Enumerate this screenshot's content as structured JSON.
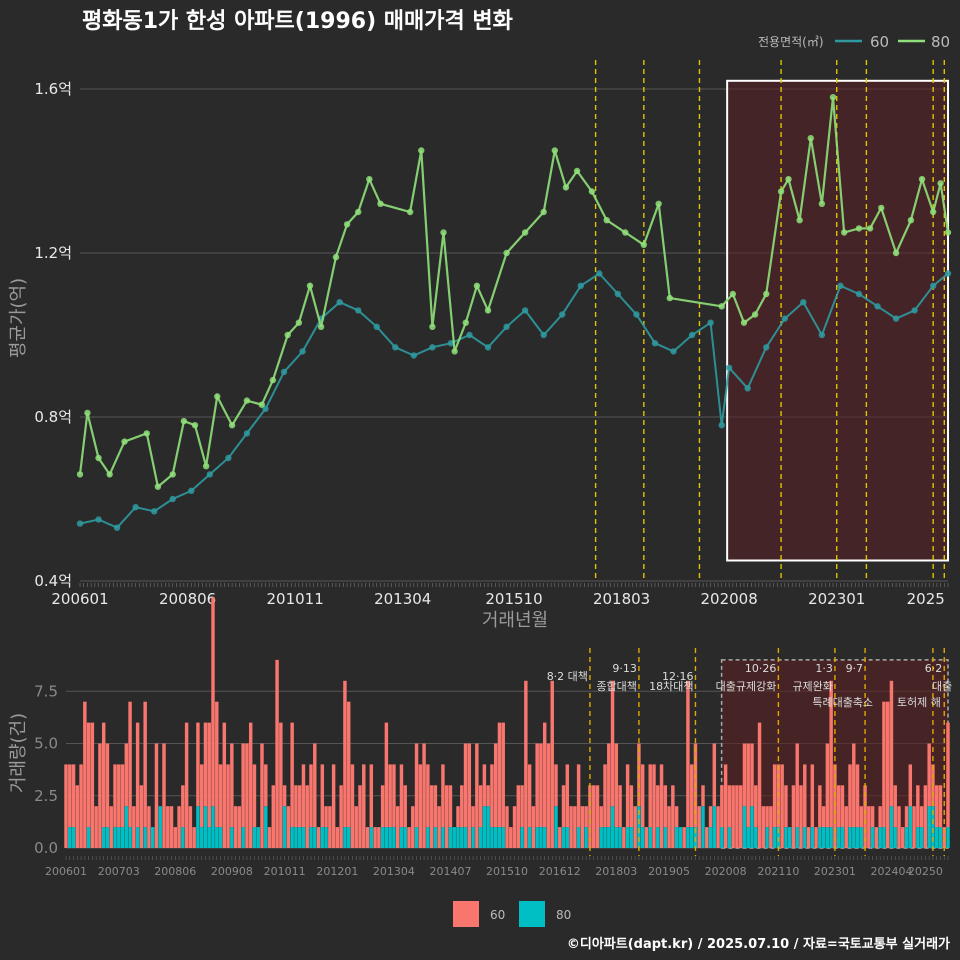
{
  "title": "평화동1가 한성 아파트(1996) 매매가격 변화",
  "legend": {
    "title": "전용면적(㎡)",
    "items": [
      {
        "label": "60",
        "color": "#2e9aa0"
      },
      {
        "label": "80",
        "color": "#8fe07a"
      }
    ]
  },
  "bottom_legend": [
    {
      "label": "60",
      "color": "#f8766d"
    },
    {
      "label": "80",
      "color": "#00bfc4"
    }
  ],
  "footer": "©디아파트(dapt.kr) / 2025.07.10 / 자료=국토교통부 실거래가",
  "policies": [
    {
      "date": "2017-08",
      "l1": "8·2 대책",
      "l2": ""
    },
    {
      "date": "2018-09",
      "l1": "9·13",
      "l2": "종합대책"
    },
    {
      "date": "2019-12",
      "l1": "12·16",
      "l2": "18차대책"
    },
    {
      "date": "2021-10",
      "l1": "10·26",
      "l2": "대출규제강화"
    },
    {
      "date": "2023-01",
      "l1": "1·3",
      "l2": "규제완화"
    },
    {
      "date": "2023-09",
      "l1": "9·7",
      "l2": "특례대출축소"
    },
    {
      "date": "2025-03",
      "l1": "",
      "l2": "토허제 해"
    },
    {
      "date": "2025-06",
      "l1": "6·2",
      "l2": "대출"
    }
  ],
  "chart_data": [
    {
      "type": "line",
      "title": "평화동1가 한성 아파트(1996) 매매가격 변화",
      "xlabel": "거래년월",
      "ylabel": "평균가(억)",
      "ylim": [
        0.4,
        1.65
      ],
      "yticks": [
        "0.4억",
        "0.8억",
        "1.2억",
        "1.6억"
      ],
      "ytick_values": [
        0.4,
        0.8,
        1.2,
        1.6
      ],
      "xticks": [
        "200601",
        "200806",
        "201011",
        "201304",
        "201510",
        "201803",
        "202008",
        "202301",
        "2025"
      ],
      "x_range": [
        "2006-01",
        "2025-07"
      ],
      "highlight_range": [
        "2020-08",
        "2025-07"
      ],
      "series": [
        {
          "name": "60",
          "points": [
            [
              "2006-01",
              0.54
            ],
            [
              "2006-06",
              0.55
            ],
            [
              "2006-11",
              0.53
            ],
            [
              "2007-04",
              0.58
            ],
            [
              "2007-09",
              0.57
            ],
            [
              "2008-02",
              0.6
            ],
            [
              "2008-07",
              0.62
            ],
            [
              "2008-12",
              0.66
            ],
            [
              "2009-05",
              0.7
            ],
            [
              "2009-10",
              0.76
            ],
            [
              "2010-03",
              0.82
            ],
            [
              "2010-08",
              0.91
            ],
            [
              "2011-01",
              0.96
            ],
            [
              "2011-06",
              1.04
            ],
            [
              "2011-11",
              1.08
            ],
            [
              "2012-04",
              1.06
            ],
            [
              "2012-09",
              1.02
            ],
            [
              "2013-02",
              0.97
            ],
            [
              "2013-07",
              0.95
            ],
            [
              "2013-12",
              0.97
            ],
            [
              "2014-05",
              0.98
            ],
            [
              "2014-10",
              1.0
            ],
            [
              "2015-03",
              0.97
            ],
            [
              "2015-08",
              1.02
            ],
            [
              "2016-01",
              1.06
            ],
            [
              "2016-06",
              1.0
            ],
            [
              "2016-11",
              1.05
            ],
            [
              "2017-04",
              1.12
            ],
            [
              "2017-09",
              1.15
            ],
            [
              "2018-02",
              1.1
            ],
            [
              "2018-07",
              1.05
            ],
            [
              "2018-12",
              0.98
            ],
            [
              "2019-05",
              0.96
            ],
            [
              "2019-10",
              1.0
            ],
            [
              "2020-03",
              1.03
            ],
            [
              "2020-06",
              0.78
            ],
            [
              "2020-08",
              0.92
            ],
            [
              "2021-01",
              0.87
            ],
            [
              "2021-06",
              0.97
            ],
            [
              "2021-11",
              1.04
            ],
            [
              "2022-04",
              1.08
            ],
            [
              "2022-09",
              1.0
            ],
            [
              "2023-02",
              1.12
            ],
            [
              "2023-07",
              1.1
            ],
            [
              "2023-12",
              1.07
            ],
            [
              "2024-05",
              1.04
            ],
            [
              "2024-10",
              1.06
            ],
            [
              "2025-03",
              1.12
            ],
            [
              "2025-07",
              1.15
            ]
          ]
        },
        {
          "name": "80",
          "points": [
            [
              "2006-01",
              0.66
            ],
            [
              "2006-03",
              0.81
            ],
            [
              "2006-06",
              0.7
            ],
            [
              "2006-09",
              0.66
            ],
            [
              "2007-01",
              0.74
            ],
            [
              "2007-07",
              0.76
            ],
            [
              "2007-10",
              0.63
            ],
            [
              "2008-02",
              0.66
            ],
            [
              "2008-05",
              0.79
            ],
            [
              "2008-08",
              0.78
            ],
            [
              "2008-11",
              0.68
            ],
            [
              "2009-02",
              0.85
            ],
            [
              "2009-06",
              0.78
            ],
            [
              "2009-10",
              0.84
            ],
            [
              "2010-02",
              0.83
            ],
            [
              "2010-05",
              0.89
            ],
            [
              "2010-09",
              1.0
            ],
            [
              "2010-12",
              1.03
            ],
            [
              "2011-03",
              1.12
            ],
            [
              "2011-06",
              1.02
            ],
            [
              "2011-10",
              1.19
            ],
            [
              "2012-01",
              1.27
            ],
            [
              "2012-04",
              1.3
            ],
            [
              "2012-07",
              1.38
            ],
            [
              "2012-10",
              1.32
            ],
            [
              "2013-06",
              1.3
            ],
            [
              "2013-09",
              1.45
            ],
            [
              "2013-12",
              1.02
            ],
            [
              "2014-03",
              1.25
            ],
            [
              "2014-06",
              0.96
            ],
            [
              "2014-09",
              1.03
            ],
            [
              "2014-12",
              1.12
            ],
            [
              "2015-03",
              1.06
            ],
            [
              "2015-08",
              1.2
            ],
            [
              "2016-01",
              1.25
            ],
            [
              "2016-06",
              1.3
            ],
            [
              "2016-09",
              1.45
            ],
            [
              "2016-12",
              1.36
            ],
            [
              "2017-03",
              1.4
            ],
            [
              "2017-07",
              1.35
            ],
            [
              "2017-11",
              1.28
            ],
            [
              "2018-04",
              1.25
            ],
            [
              "2018-09",
              1.22
            ],
            [
              "2019-01",
              1.32
            ],
            [
              "2019-04",
              1.09
            ],
            [
              "2020-06",
              1.07
            ],
            [
              "2020-09",
              1.1
            ],
            [
              "2020-12",
              1.03
            ],
            [
              "2021-03",
              1.05
            ],
            [
              "2021-06",
              1.1
            ],
            [
              "2021-10",
              1.35
            ],
            [
              "2021-12",
              1.38
            ],
            [
              "2022-03",
              1.28
            ],
            [
              "2022-06",
              1.48
            ],
            [
              "2022-09",
              1.32
            ],
            [
              "2022-12",
              1.58
            ],
            [
              "2023-03",
              1.25
            ],
            [
              "2023-07",
              1.26
            ],
            [
              "2023-10",
              1.26
            ],
            [
              "2024-01",
              1.31
            ],
            [
              "2024-05",
              1.2
            ],
            [
              "2024-09",
              1.28
            ],
            [
              "2024-12",
              1.38
            ],
            [
              "2025-03",
              1.3
            ],
            [
              "2025-05",
              1.37
            ],
            [
              "2025-07",
              1.25
            ]
          ]
        }
      ]
    },
    {
      "type": "bar",
      "xlabel": "",
      "ylabel": "거래량(건)",
      "ylim": [
        0,
        9
      ],
      "yticks": [
        "0.0",
        "2.5",
        "5.0",
        "7.5"
      ],
      "ytick_values": [
        0,
        2.5,
        5,
        7.5
      ],
      "xticks": [
        "200601",
        "200703",
        "200806",
        "200908",
        "201011",
        "201201",
        "201304",
        "201407",
        "201510",
        "201612",
        "201803",
        "201905",
        "202008",
        "202110",
        "202301",
        "202404",
        "20250"
      ],
      "stacked": true,
      "series_names": [
        "60",
        "80"
      ]
    }
  ]
}
